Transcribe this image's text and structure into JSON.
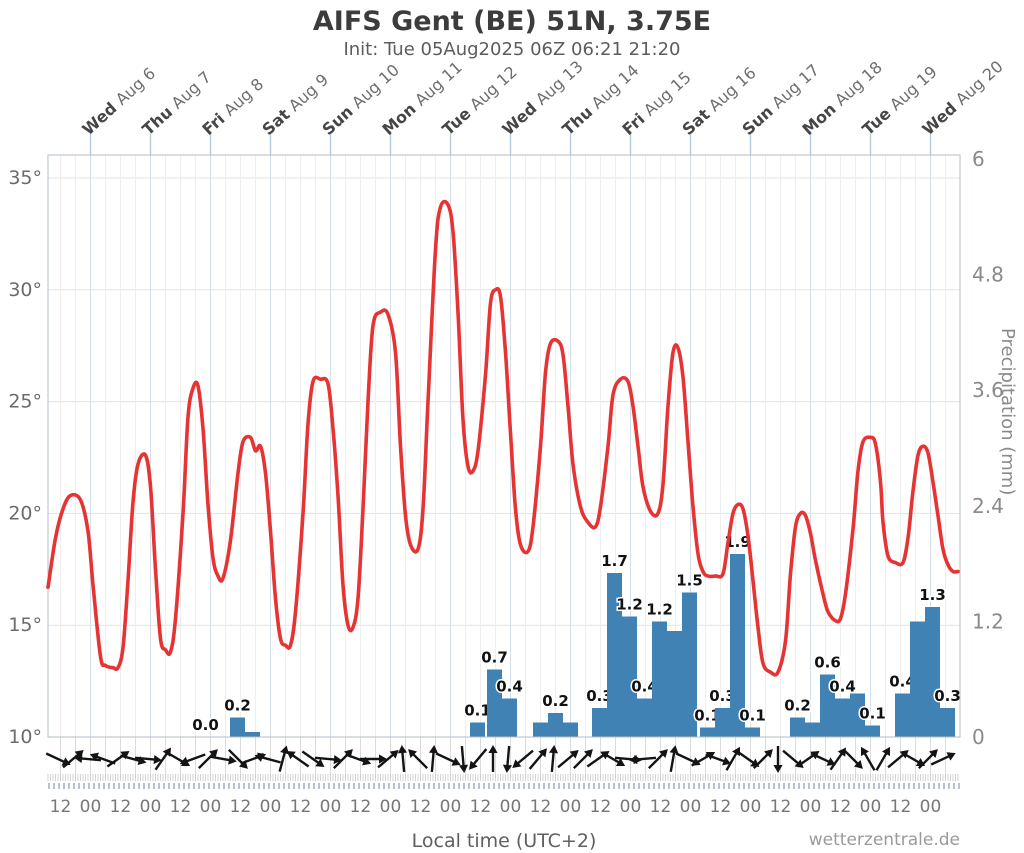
{
  "header": {
    "title": "AIFS Gent (BE) 51N, 3.75E",
    "subtitle": "Init: Tue 05Aug2025 06Z 06:21 21:20"
  },
  "watermark": "wetterzentrale.de",
  "chart_data": {
    "type": "meteogram: temperature line + precipitation bars + wind direction arrows",
    "title": "AIFS Gent (BE) 51N, 3.75E",
    "subtitle": "Init: Tue 05Aug2025 06Z 06:21 21:20",
    "x_axis": {
      "label": "Local time (UTC+2)",
      "start": "Tue 05 Aug 2025 07:00 local",
      "end": "Wed 20 Aug 2025 12:00 local",
      "hours_total": 365,
      "day_labels": [
        {
          "dow": "Wed",
          "date": "Aug 6"
        },
        {
          "dow": "Thu",
          "date": "Aug 7"
        },
        {
          "dow": "Fri",
          "date": "Aug 8"
        },
        {
          "dow": "Sat",
          "date": "Aug 9"
        },
        {
          "dow": "Sun",
          "date": "Aug 10"
        },
        {
          "dow": "Mon",
          "date": "Aug 11"
        },
        {
          "dow": "Tue",
          "date": "Aug 12"
        },
        {
          "dow": "Wed",
          "date": "Aug 13"
        },
        {
          "dow": "Thu",
          "date": "Aug 14"
        },
        {
          "dow": "Fri",
          "date": "Aug 15"
        },
        {
          "dow": "Sat",
          "date": "Aug 16"
        },
        {
          "dow": "Sun",
          "date": "Aug 17"
        },
        {
          "dow": "Mon",
          "date": "Aug 18"
        },
        {
          "dow": "Tue",
          "date": "Aug 19"
        },
        {
          "dow": "Wed",
          "date": "Aug 20"
        }
      ],
      "first_tick_hour": 5,
      "tick_step_hours": 12,
      "time_tick_labels": [
        "12",
        "00",
        "12",
        "00",
        "12",
        "00",
        "12",
        "00",
        "12",
        "00",
        "12",
        "00",
        "12",
        "00",
        "12",
        "00",
        "12",
        "00",
        "12",
        "00",
        "12",
        "00",
        "12",
        "00",
        "12",
        "00",
        "12",
        "00",
        "12",
        "00"
      ]
    },
    "y_left": {
      "ticks": [
        "35°",
        "30°",
        "25°",
        "20°",
        "15°",
        "10°"
      ],
      "tick_values": [
        35,
        30,
        25,
        20,
        15,
        10
      ],
      "range": [
        10,
        36.0
      ],
      "line_color": "#e63333"
    },
    "y_right": {
      "label": "Precipitation (mm)",
      "ticks": [
        "6",
        "4.8",
        "3.6",
        "2.4",
        "1.2",
        "0"
      ],
      "tick_values": [
        6,
        4.8,
        3.6,
        2.4,
        1.2,
        0
      ],
      "range": [
        0,
        6
      ],
      "bar_color": "#4182b4"
    },
    "temperature_series_h_c": [
      [
        0,
        16.7
      ],
      [
        3,
        18.9
      ],
      [
        6,
        20.2
      ],
      [
        9,
        20.8
      ],
      [
        13,
        20.6
      ],
      [
        16,
        19.2
      ],
      [
        18,
        16.8
      ],
      [
        21,
        13.6
      ],
      [
        23,
        13.2
      ],
      [
        26,
        13.1
      ],
      [
        28,
        13.1
      ],
      [
        30,
        14.0
      ],
      [
        32,
        17.0
      ],
      [
        34,
        20.5
      ],
      [
        36,
        22.2
      ],
      [
        39,
        22.6
      ],
      [
        41,
        21.2
      ],
      [
        43,
        17.5
      ],
      [
        45,
        14.4
      ],
      [
        47,
        13.9
      ],
      [
        49,
        13.8
      ],
      [
        51,
        15.3
      ],
      [
        54,
        20.0
      ],
      [
        56,
        24.3
      ],
      [
        58,
        25.6
      ],
      [
        60,
        25.7
      ],
      [
        62,
        23.8
      ],
      [
        64,
        20.4
      ],
      [
        66,
        18.0
      ],
      [
        68,
        17.2
      ],
      [
        70,
        17.1
      ],
      [
        73,
        18.8
      ],
      [
        76,
        21.8
      ],
      [
        78,
        23.2
      ],
      [
        81,
        23.4
      ],
      [
        83,
        22.8
      ],
      [
        85,
        23.0
      ],
      [
        87,
        21.8
      ],
      [
        89,
        19.2
      ],
      [
        91,
        16.2
      ],
      [
        93,
        14.4
      ],
      [
        95,
        14.1
      ],
      [
        97,
        14.1
      ],
      [
        99,
        15.6
      ],
      [
        102,
        20.0
      ],
      [
        104,
        24.0
      ],
      [
        106,
        25.9
      ],
      [
        109,
        26.0
      ],
      [
        112,
        25.8
      ],
      [
        114,
        23.8
      ],
      [
        116,
        20.8
      ],
      [
        118,
        16.8
      ],
      [
        120,
        15.0
      ],
      [
        122,
        14.9
      ],
      [
        124,
        16.2
      ],
      [
        126,
        20.2
      ],
      [
        128,
        25.0
      ],
      [
        130,
        28.4
      ],
      [
        133,
        29.0
      ],
      [
        136,
        28.9
      ],
      [
        139,
        27.2
      ],
      [
        141,
        23.0
      ],
      [
        143,
        19.9
      ],
      [
        145,
        18.6
      ],
      [
        148,
        18.4
      ],
      [
        150,
        20.2
      ],
      [
        152,
        25.0
      ],
      [
        155,
        31.8
      ],
      [
        157,
        33.7
      ],
      [
        160,
        33.8
      ],
      [
        162,
        32.6
      ],
      [
        164,
        29.0
      ],
      [
        166,
        24.2
      ],
      [
        168,
        22.1
      ],
      [
        170,
        21.9
      ],
      [
        172,
        22.8
      ],
      [
        175,
        26.2
      ],
      [
        177,
        29.4
      ],
      [
        179,
        30.0
      ],
      [
        181,
        29.7
      ],
      [
        183,
        27.2
      ],
      [
        185,
        23.6
      ],
      [
        187,
        20.2
      ],
      [
        189,
        18.6
      ],
      [
        192,
        18.3
      ],
      [
        194,
        19.4
      ],
      [
        197,
        23.0
      ],
      [
        199,
        26.3
      ],
      [
        201,
        27.6
      ],
      [
        204,
        27.7
      ],
      [
        206,
        27.1
      ],
      [
        208,
        24.8
      ],
      [
        210,
        22.2
      ],
      [
        213,
        20.3
      ],
      [
        216,
        19.6
      ],
      [
        219,
        19.4
      ],
      [
        221,
        20.3
      ],
      [
        224,
        23.0
      ],
      [
        226,
        25.3
      ],
      [
        229,
        26.0
      ],
      [
        232,
        25.9
      ],
      [
        234,
        24.8
      ],
      [
        236,
        23.0
      ],
      [
        238,
        21.2
      ],
      [
        241,
        20.1
      ],
      [
        244,
        20.0
      ],
      [
        246,
        21.3
      ],
      [
        248,
        24.8
      ],
      [
        250,
        27.2
      ],
      [
        252,
        27.4
      ],
      [
        254,
        26.1
      ],
      [
        256,
        23.2
      ],
      [
        258,
        20.3
      ],
      [
        260,
        18.2
      ],
      [
        262,
        17.4
      ],
      [
        264,
        17.2
      ],
      [
        267,
        17.2
      ],
      [
        270,
        17.3
      ],
      [
        272,
        18.7
      ],
      [
        274,
        20.0
      ],
      [
        276,
        20.4
      ],
      [
        278,
        20.2
      ],
      [
        280,
        19.0
      ],
      [
        282,
        17.0
      ],
      [
        284,
        14.9
      ],
      [
        286,
        13.3
      ],
      [
        289,
        12.9
      ],
      [
        292,
        12.9
      ],
      [
        295,
        14.3
      ],
      [
        297,
        17.3
      ],
      [
        299,
        19.4
      ],
      [
        301,
        20.0
      ],
      [
        303,
        19.9
      ],
      [
        305,
        19.1
      ],
      [
        307,
        17.9
      ],
      [
        310,
        16.4
      ],
      [
        312,
        15.6
      ],
      [
        315,
        15.2
      ],
      [
        317,
        15.3
      ],
      [
        319,
        16.4
      ],
      [
        322,
        19.3
      ],
      [
        324,
        21.9
      ],
      [
        326,
        23.2
      ],
      [
        329,
        23.4
      ],
      [
        331,
        23.1
      ],
      [
        333,
        21.4
      ],
      [
        334,
        19.6
      ],
      [
        336,
        18.1
      ],
      [
        339,
        17.8
      ],
      [
        342,
        17.8
      ],
      [
        344,
        18.9
      ],
      [
        346,
        21.0
      ],
      [
        348,
        22.6
      ],
      [
        350,
        23.0
      ],
      [
        352,
        22.7
      ],
      [
        354,
        21.4
      ],
      [
        356,
        19.9
      ],
      [
        358,
        18.4
      ],
      [
        360,
        17.7
      ],
      [
        362,
        17.4
      ],
      [
        364,
        17.4
      ]
    ],
    "precipitation_bars": [
      {
        "h": 60.0,
        "mm": 0.0,
        "label": "0.0"
      },
      {
        "h": 72.8,
        "mm": 0.2,
        "label": "0.2"
      },
      {
        "h": 78.8,
        "mm": 0.05,
        "label": null
      },
      {
        "h": 168.8,
        "mm": 0.15,
        "label": "0.1"
      },
      {
        "h": 175.6,
        "mm": 0.7,
        "label": "0.7"
      },
      {
        "h": 181.6,
        "mm": 0.4,
        "label": "0.4"
      },
      {
        "h": 194.0,
        "mm": 0.15,
        "label": null
      },
      {
        "h": 200.0,
        "mm": 0.25,
        "label": "0.2"
      },
      {
        "h": 206.0,
        "mm": 0.15,
        "label": null
      },
      {
        "h": 217.6,
        "mm": 0.3,
        "label": "0.3"
      },
      {
        "h": 223.6,
        "mm": 1.7,
        "label": "1.7"
      },
      {
        "h": 229.6,
        "mm": 1.25,
        "label": "1.2"
      },
      {
        "h": 235.6,
        "mm": 0.4,
        "label": "0.4"
      },
      {
        "h": 241.6,
        "mm": 1.2,
        "label": "1.2"
      },
      {
        "h": 247.6,
        "mm": 1.1,
        "label": null
      },
      {
        "h": 253.6,
        "mm": 1.5,
        "label": "1.5"
      },
      {
        "h": 260.8,
        "mm": 0.1,
        "label": "0.1"
      },
      {
        "h": 266.8,
        "mm": 0.3,
        "label": "0.3"
      },
      {
        "h": 272.8,
        "mm": 1.9,
        "label": "1.9"
      },
      {
        "h": 278.8,
        "mm": 0.1,
        "label": "0.1"
      },
      {
        "h": 296.8,
        "mm": 0.2,
        "label": "0.2"
      },
      {
        "h": 302.8,
        "mm": 0.15,
        "label": null
      },
      {
        "h": 308.8,
        "mm": 0.65,
        "label": "0.6"
      },
      {
        "h": 314.8,
        "mm": 0.4,
        "label": "0.4"
      },
      {
        "h": 320.8,
        "mm": 0.45,
        "label": null
      },
      {
        "h": 326.8,
        "mm": 0.12,
        "label": "0.1"
      },
      {
        "h": 338.8,
        "mm": 0.45,
        "label": "0.4"
      },
      {
        "h": 344.8,
        "mm": 1.2,
        "label": null
      },
      {
        "h": 350.8,
        "mm": 1.35,
        "label": "1.3"
      },
      {
        "h": 356.8,
        "mm": 0.3,
        "label": "0.3"
      }
    ],
    "wind_arrows_deg": [
      25,
      -40,
      185,
      200,
      -35,
      15,
      5,
      -55,
      30,
      160,
      -45,
      10,
      45,
      -20,
      195,
      -75,
      215,
      35,
      5,
      -45,
      20,
      0,
      -40,
      -95,
      -135,
      -85,
      25,
      85,
      130,
      -90,
      95,
      140,
      -50,
      -85,
      -40,
      -45,
      -35,
      30,
      5,
      175,
      -45,
      -80,
      25,
      -30,
      20,
      -60,
      35,
      -45,
      90,
      40,
      -35,
      25,
      -55,
      45,
      -120,
      -60,
      -40,
      30,
      -45,
      -25
    ]
  }
}
